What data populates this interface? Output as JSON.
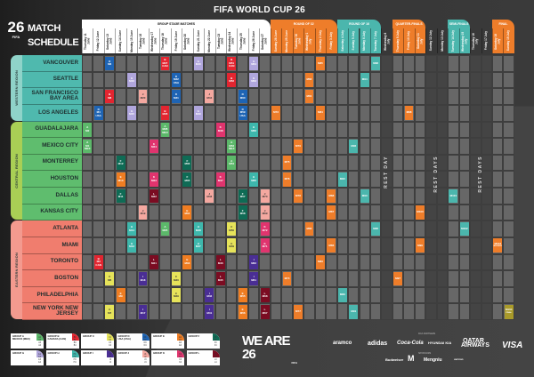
{
  "header": {
    "fifa_title": "FIFA WORLD CUP 26",
    "logo": "26 FIFA",
    "title_line1": "MATCH",
    "title_line2": "SCHEDULE"
  },
  "stages": [
    {
      "label": "GROUP STAGE MATCHES",
      "color": "#ffffff",
      "text": "#111111",
      "first": 0,
      "count": 17
    },
    {
      "label": "ROUND OF 32",
      "color": "#ee7d2a",
      "text": "#ffffff",
      "first": 17,
      "count": 6
    },
    {
      "label": "ROUND OF 16",
      "color": "#4bb6ad",
      "text": "#ffffff",
      "first": 23,
      "count": 4
    },
    {
      "label": "QUARTER-FINALS",
      "color": "#ee7d2a",
      "text": "#ffffff",
      "first": 28,
      "count": 3
    },
    {
      "label": "SEMI-FINALS",
      "color": "#4bb6ad",
      "text": "#ffffff",
      "first": 33,
      "count": 2
    },
    {
      "label": "FINAL",
      "color": "#ee7d2a",
      "text": "#ffffff",
      "first": 37,
      "count": 2
    }
  ],
  "dates": [
    "Thursday 11 June",
    "Friday 12 June",
    "Saturday 13 June",
    "Sunday 14 June",
    "Monday 15 June",
    "Tuesday 16 June",
    "Wednesday 17 June",
    "Thursday 18 June",
    "Friday 19 June",
    "Saturday 20 June",
    "Sunday 21 June",
    "Monday 22 June",
    "Tuesday 23 June",
    "Wednesday 24 June",
    "Thursday 25 June",
    "Friday 26 June",
    "Saturday 27 June",
    "Sunday 28 June",
    "Monday 29 June",
    "Tuesday 30 June",
    "Wednesday 1 July",
    "Thursday 2 July",
    "Friday 3 July",
    "Saturday 4 July",
    "Sunday 5 July",
    "Monday 6 July",
    "Tuesday 7 July",
    "Wednesday 8 July",
    "Thursday 9 July",
    "Friday 10 July",
    "Saturday 11 July",
    "Sunday 12 July",
    "Monday 13 July",
    "Tuesday 14 July",
    "Wednesday 15 July",
    "Thursday 16 July",
    "Friday 17 July",
    "Saturday 18 July",
    "Sunday 19 July"
  ],
  "rest_days": [
    {
      "label": "REST DAY",
      "days": [
        27
      ]
    },
    {
      "label": "REST DAYS",
      "days": [
        31,
        32
      ]
    },
    {
      "label": "REST DAYS",
      "days": [
        35,
        36
      ]
    }
  ],
  "regions": [
    {
      "label": "WESTERN REGION",
      "color": "#8fd3c9",
      "city_color": "#4fb9ae",
      "rows": [
        0,
        3
      ]
    },
    {
      "label": "CENTRAL REGION",
      "color": "#a9cf55",
      "city_color": "#5fbd6e",
      "rows": [
        4,
        9
      ]
    },
    {
      "label": "EASTERN REGION",
      "color": "#f39a8f",
      "city_color": "#f07d6e",
      "rows": [
        10,
        15
      ]
    }
  ],
  "cities": [
    "VANCOUVER",
    "SEATTLE",
    "SAN FRANCISCO BAY AREA",
    "LOS ANGELES",
    "GUADALAJARA",
    "MEXICO CITY",
    "MONTERREY",
    "HOUSTON",
    "DALLAS",
    "KANSAS CITY",
    "ATLANTA",
    "MIAMI",
    "TORONTO",
    "BOSTON",
    "PHILADELPHIA",
    "NEW YORK NEW JERSEY"
  ],
  "group_colors": {
    "A": "#5cb86a",
    "B": "#e32530",
    "C": "#e6e35a",
    "D": "#1e64b4",
    "E": "#ef7d22",
    "F": "#0f6b55",
    "G": "#b0a6dc",
    "H": "#3eb7ac",
    "I": "#4a2e94",
    "J": "#f4a8a0",
    "K": "#e0346e",
    "L": "#7b0c22",
    "KO1": "#ee7d2a",
    "KO2": "#4bb6ad",
    "FINAL": "#a99a2a"
  },
  "matches": [
    {
      "m": "M1",
      "g": "A",
      "c": 5,
      "d": 0,
      "t": "MEX"
    },
    {
      "m": "M2",
      "g": "A",
      "c": 4,
      "d": 0
    },
    {
      "m": "M3",
      "g": "B",
      "c": 12,
      "d": 1,
      "t": "CAN"
    },
    {
      "m": "M4",
      "g": "D",
      "c": 3,
      "d": 1,
      "t": "USA"
    },
    {
      "m": "M5",
      "g": "C",
      "c": 13,
      "d": 2
    },
    {
      "m": "M6",
      "g": "D",
      "c": 0,
      "d": 2
    },
    {
      "m": "M7",
      "g": "C",
      "c": 15,
      "d": 2
    },
    {
      "m": "M8",
      "g": "B",
      "c": 2,
      "d": 2
    },
    {
      "m": "M9",
      "g": "E",
      "c": 14,
      "d": 3
    },
    {
      "m": "M10",
      "g": "E",
      "c": 7,
      "d": 3
    },
    {
      "m": "M11",
      "g": "F",
      "c": 8,
      "d": 3
    },
    {
      "m": "M12",
      "g": "F",
      "c": 6,
      "d": 3
    },
    {
      "m": "M13",
      "g": "H",
      "c": 11,
      "d": 4
    },
    {
      "m": "M14",
      "g": "H",
      "c": 10,
      "d": 4
    },
    {
      "m": "M15",
      "g": "G",
      "c": 3,
      "d": 4
    },
    {
      "m": "M16",
      "g": "G",
      "c": 1,
      "d": 4
    },
    {
      "m": "M17",
      "g": "I",
      "c": 15,
      "d": 5
    },
    {
      "m": "M18",
      "g": "I",
      "c": 13,
      "d": 5
    },
    {
      "m": "M19",
      "g": "J",
      "c": 9,
      "d": 5
    },
    {
      "m": "M20",
      "g": "J",
      "c": 2,
      "d": 5
    },
    {
      "m": "M21",
      "g": "L",
      "c": 12,
      "d": 6
    },
    {
      "m": "M22",
      "g": "L",
      "c": 8,
      "d": 6
    },
    {
      "m": "M23",
      "g": "K",
      "c": 7,
      "d": 6
    },
    {
      "m": "M24",
      "g": "K",
      "c": 5,
      "d": 6
    },
    {
      "m": "M25",
      "g": "A",
      "c": 10,
      "d": 7
    },
    {
      "m": "M26",
      "g": "B",
      "c": 3,
      "d": 7
    },
    {
      "m": "M27",
      "g": "B",
      "c": 0,
      "d": 7,
      "t": "CAN"
    },
    {
      "m": "M28",
      "g": "A",
      "c": 4,
      "d": 7,
      "t": "MEX"
    },
    {
      "m": "M29",
      "g": "C",
      "c": 14,
      "d": 8
    },
    {
      "m": "M30",
      "g": "C",
      "c": 13,
      "d": 8
    },
    {
      "m": "M31",
      "g": "D",
      "c": 2,
      "d": 8
    },
    {
      "m": "M32",
      "g": "D",
      "c": 1,
      "d": 8,
      "t": "USA"
    },
    {
      "m": "M33",
      "g": "E",
      "c": 12,
      "d": 9
    },
    {
      "m": "M34",
      "g": "E",
      "c": 9,
      "d": 9
    },
    {
      "m": "M35",
      "g": "F",
      "c": 7,
      "d": 9
    },
    {
      "m": "M36",
      "g": "F",
      "c": 6,
      "d": 9
    },
    {
      "m": "M37",
      "g": "H",
      "c": 11,
      "d": 10
    },
    {
      "m": "M38",
      "g": "H",
      "c": 10,
      "d": 10
    },
    {
      "m": "M39",
      "g": "G",
      "c": 3,
      "d": 10
    },
    {
      "m": "M40",
      "g": "G",
      "c": 0,
      "d": 10
    },
    {
      "m": "M41",
      "g": "I",
      "c": 15,
      "d": 11
    },
    {
      "m": "M42",
      "g": "I",
      "c": 14,
      "d": 11
    },
    {
      "m": "M43",
      "g": "J",
      "c": 8,
      "d": 11
    },
    {
      "m": "M44",
      "g": "J",
      "c": 2,
      "d": 11
    },
    {
      "m": "M45",
      "g": "L",
      "c": 13,
      "d": 12
    },
    {
      "m": "M46",
      "g": "L",
      "c": 12,
      "d": 12
    },
    {
      "m": "M47",
      "g": "K",
      "c": 7,
      "d": 12
    },
    {
      "m": "M48",
      "g": "K",
      "c": 4,
      "d": 12
    },
    {
      "m": "M49",
      "g": "C",
      "c": 11,
      "d": 13
    },
    {
      "m": "M50",
      "g": "C",
      "c": 10,
      "d": 13
    },
    {
      "m": "M51",
      "g": "B",
      "c": 0,
      "d": 13,
      "t": "CAN"
    },
    {
      "m": "M52",
      "g": "B",
      "c": 1,
      "d": 13
    },
    {
      "m": "M53",
      "g": "A",
      "c": 5,
      "d": 13,
      "t": "MEX"
    },
    {
      "m": "M54",
      "g": "A",
      "c": 6,
      "d": 13
    },
    {
      "m": "M55",
      "g": "E",
      "c": 14,
      "d": 14
    },
    {
      "m": "M56",
      "g": "E",
      "c": 15,
      "d": 14
    },
    {
      "m": "M57",
      "g": "F",
      "c": 8,
      "d": 14
    },
    {
      "m": "M58",
      "g": "F",
      "c": 9,
      "d": 14
    },
    {
      "m": "M59",
      "g": "D",
      "c": 3,
      "d": 14,
      "t": "USA"
    },
    {
      "m": "M60",
      "g": "D",
      "c": 2,
      "d": 14
    },
    {
      "m": "M61",
      "g": "I",
      "c": 13,
      "d": 15
    },
    {
      "m": "M62",
      "g": "I",
      "c": 12,
      "d": 15
    },
    {
      "m": "M63",
      "g": "G",
      "c": 1,
      "d": 15
    },
    {
      "m": "M64",
      "g": "G",
      "c": 0,
      "d": 15
    },
    {
      "m": "M65",
      "g": "H",
      "c": 7,
      "d": 15
    },
    {
      "m": "M66",
      "g": "H",
      "c": 4,
      "d": 15
    },
    {
      "m": "M67",
      "g": "L",
      "c": 15,
      "d": 16
    },
    {
      "m": "M68",
      "g": "L",
      "c": 14,
      "d": 16
    },
    {
      "m": "M69",
      "g": "J",
      "c": 9,
      "d": 16
    },
    {
      "m": "M70",
      "g": "J",
      "c": 8,
      "d": 16
    },
    {
      "m": "M71",
      "g": "K",
      "c": 11,
      "d": 16
    },
    {
      "m": "M72",
      "g": "K",
      "c": 10,
      "d": 16
    },
    {
      "m": "M73",
      "g": "KO1",
      "c": 3,
      "d": 17
    },
    {
      "m": "M74",
      "g": "KO1",
      "c": 13,
      "d": 18
    },
    {
      "m": "M75",
      "g": "KO1",
      "c": 6,
      "d": 18
    },
    {
      "m": "M76",
      "g": "KO1",
      "c": 7,
      "d": 18
    },
    {
      "m": "M77",
      "g": "KO1",
      "c": 15,
      "d": 19
    },
    {
      "m": "M78",
      "g": "KO1",
      "c": 8,
      "d": 19
    },
    {
      "m": "M79",
      "g": "KO1",
      "c": 5,
      "d": 19
    },
    {
      "m": "M80",
      "g": "KO1",
      "c": 10,
      "d": 20
    },
    {
      "m": "M81",
      "g": "KO1",
      "c": 2,
      "d": 20
    },
    {
      "m": "M82",
      "g": "KO1",
      "c": 1,
      "d": 20
    },
    {
      "m": "M83",
      "g": "KO1",
      "c": 12,
      "d": 21
    },
    {
      "m": "M84",
      "g": "KO1",
      "c": 3,
      "d": 21
    },
    {
      "m": "M85",
      "g": "KO1",
      "c": 0,
      "d": 21
    },
    {
      "m": "M86",
      "g": "KO1",
      "c": 11,
      "d": 22
    },
    {
      "m": "M87",
      "g": "KO1",
      "c": 9,
      "d": 22
    },
    {
      "m": "M88",
      "g": "KO1",
      "c": 8,
      "d": 22
    },
    {
      "m": "M89",
      "g": "KO2",
      "c": 14,
      "d": 23
    },
    {
      "m": "M90",
      "g": "KO2",
      "c": 7,
      "d": 23
    },
    {
      "m": "M91",
      "g": "KO2",
      "c": 15,
      "d": 24
    },
    {
      "m": "M92",
      "g": "KO2",
      "c": 5,
      "d": 24
    },
    {
      "m": "M93",
      "g": "KO2",
      "c": 8,
      "d": 25
    },
    {
      "m": "M94",
      "g": "KO2",
      "c": 1,
      "d": 25
    },
    {
      "m": "M95",
      "g": "KO2",
      "c": 10,
      "d": 26
    },
    {
      "m": "M96",
      "g": "KO2",
      "c": 0,
      "d": 26
    },
    {
      "m": "M97",
      "g": "KO1",
      "c": 13,
      "d": 28
    },
    {
      "m": "M98",
      "g": "KO1",
      "c": 3,
      "d": 29
    },
    {
      "m": "M99",
      "g": "KO1",
      "c": 11,
      "d": 30
    },
    {
      "m": "M100",
      "g": "KO1",
      "c": 9,
      "d": 30
    },
    {
      "m": "M101",
      "g": "KO2",
      "c": 8,
      "d": 33
    },
    {
      "m": "M102",
      "g": "KO2",
      "c": 10,
      "d": 34
    },
    {
      "m": "M103",
      "g": "KO1",
      "c": 11,
      "d": 37,
      "t": "BRONZE"
    },
    {
      "m": "M104",
      "g": "FINAL",
      "c": 15,
      "d": 38,
      "t": "FINAL"
    }
  ],
  "groups": [
    {
      "name": "GROUP A",
      "host": "MEXICO (MEX)",
      "slots": [
        "A1",
        "A2",
        "A3",
        "A4"
      ],
      "color": "#5cb86a"
    },
    {
      "name": "GROUP B",
      "host": "CANADA (CAN)",
      "slots": [
        "B1",
        "B2",
        "B3",
        "B4"
      ],
      "color": "#e32530"
    },
    {
      "name": "GROUP C",
      "host": "",
      "slots": [
        "C1",
        "C2",
        "C3",
        "C4"
      ],
      "color": "#e6e35a"
    },
    {
      "name": "GROUP D",
      "host": "USA (USA)",
      "slots": [
        "D1",
        "D2",
        "D3",
        "D4"
      ],
      "color": "#1e64b4"
    },
    {
      "name": "GROUP E",
      "host": "",
      "slots": [
        "E1",
        "E2",
        "E3",
        "E4"
      ],
      "color": "#ef7d22"
    },
    {
      "name": "GROUP F",
      "host": "",
      "slots": [
        "F1",
        "F2",
        "F3",
        "F4"
      ],
      "color": "#0f6b55"
    },
    {
      "name": "GROUP G",
      "host": "",
      "slots": [
        "G1",
        "G2",
        "G3",
        "G4"
      ],
      "color": "#b0a6dc"
    },
    {
      "name": "GROUP H",
      "host": "",
      "slots": [
        "H1",
        "H2",
        "H3",
        "H4"
      ],
      "color": "#3eb7ac"
    },
    {
      "name": "GROUP I",
      "host": "",
      "slots": [
        "I1",
        "I2",
        "I3",
        "I4"
      ],
      "color": "#4a2e94"
    },
    {
      "name": "GROUP J",
      "host": "",
      "slots": [
        "J1",
        "J2",
        "J3",
        "J4"
      ],
      "color": "#f4a8a0"
    },
    {
      "name": "GROUP K",
      "host": "",
      "slots": [
        "K1",
        "K2",
        "K3",
        "K4"
      ],
      "color": "#e0346e"
    },
    {
      "name": "GROUP L",
      "host": "",
      "slots": [
        "L1",
        "L2",
        "L3",
        "L4"
      ],
      "color": "#7b0c22"
    }
  ],
  "footer": {
    "we_are": "WE ARE 26",
    "we_are_fifa": "FIFA",
    "partners_label": "FIFA PARTNERS",
    "sponsors_label": "SPONSORS",
    "partners": [
      "aramco",
      "adidas",
      "Coca-Cola",
      "HYUNDAI KIA",
      "QATAR AIRWAYS",
      "VISA"
    ],
    "sponsors": [
      "Budweiser",
      "M",
      "Mengniu",
      "verizon"
    ]
  }
}
